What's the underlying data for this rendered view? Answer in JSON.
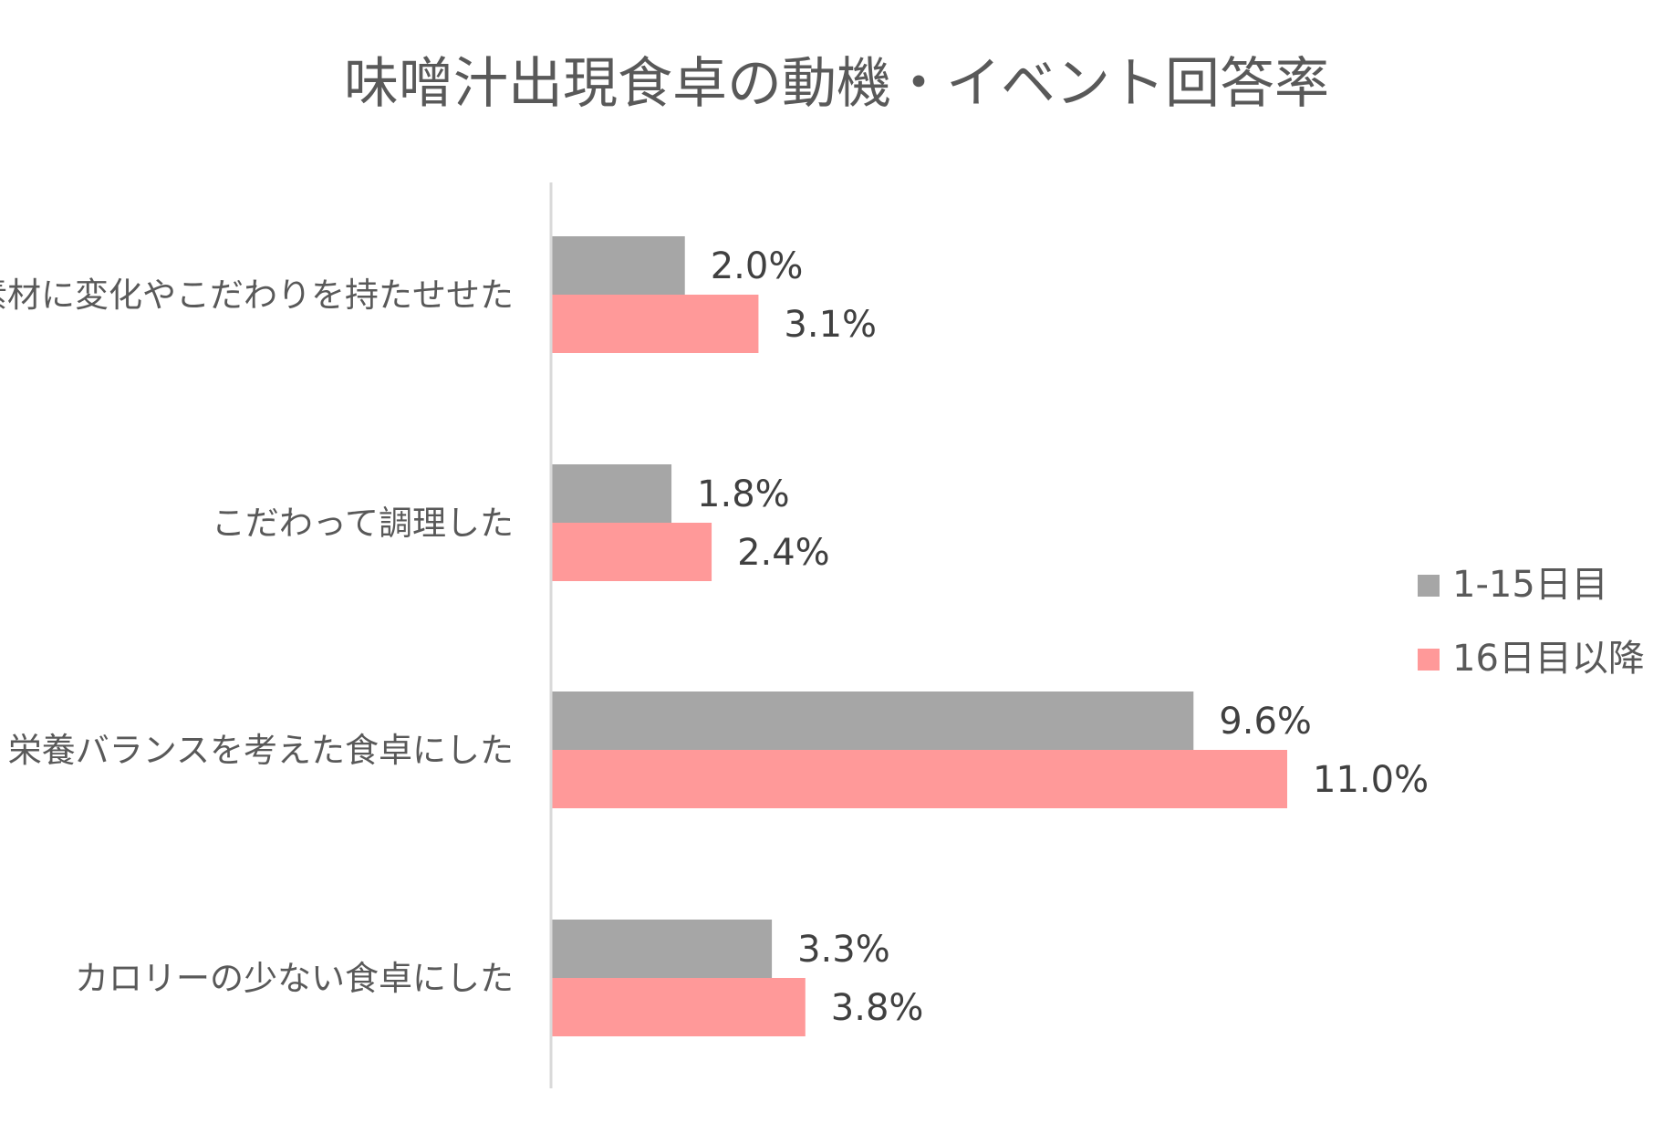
{
  "chart_data": {
    "type": "bar",
    "orientation": "horizontal",
    "title": "味噌汁出現食卓の動機・イベント回答率",
    "categories": [
      "素材に変化やこだわりを持たせせた",
      "こだわって調理した",
      "栄養バランスを考えた食卓にした",
      "カロリーの少ない食卓にした"
    ],
    "series": [
      {
        "name": "1-15日目",
        "color": "#a6a6a6",
        "values": [
          2.0,
          1.8,
          9.6,
          3.3
        ],
        "labels": [
          "2.0%",
          "1.8%",
          "9.6%",
          "3.3%"
        ]
      },
      {
        "name": "16日目以降",
        "color": "#ff9999",
        "values": [
          3.1,
          2.4,
          11.0,
          3.8
        ],
        "labels": [
          "3.1%",
          "2.4%",
          "11.0%",
          "3.8%"
        ]
      }
    ],
    "unit": "%",
    "xlim": [
      0,
      12
    ],
    "grid": false,
    "legend": "right",
    "axis_color": "#d9d9d9"
  }
}
